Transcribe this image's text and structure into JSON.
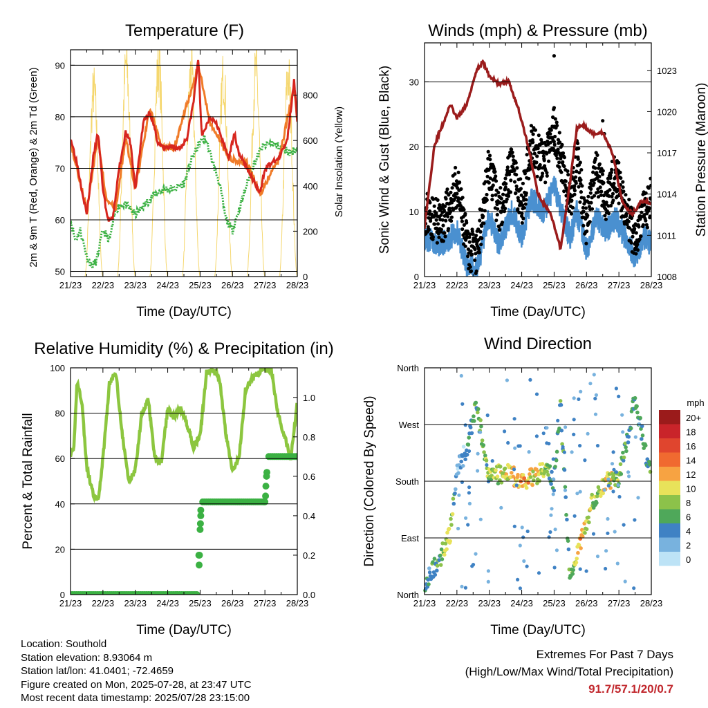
{
  "x_ticks": [
    "21/23",
    "22/23",
    "23/23",
    "24/23",
    "25/23",
    "26/23",
    "27/23",
    "28/23"
  ],
  "footer": {
    "location": "Location: Southold",
    "elevation": "Station elevation: 8.93064 m",
    "latlon": "Station lat/lon: 41.0401; -72.4659",
    "created": "Figure created on Mon, 2025-07-28, at 23:47 UTC",
    "recent": "Most recent data timestamp: 2025/07/28 23:15:00"
  },
  "extremes": {
    "line1": "Extremes For Past 7 Days",
    "line2": "(High/Low/Max Wind/Total Precipitation)",
    "value": "91.7/57.1/20/0.7"
  },
  "colors": {
    "temp2m": "#d7261e",
    "temp9m": "#f07b28",
    "dewpoint": "#3bb143",
    "solar": "#f5d76e",
    "wind": "#4a90d0",
    "gust": "#000000",
    "pressure": "#9b1c1c",
    "rh": "#8cc63f",
    "precip": "#3bb143"
  },
  "chart_data": [
    {
      "type": "line",
      "title": "Temperature (F)",
      "xlabel": "Time (Day/UTC)",
      "ylabel": "2m & 9m T (Red, Orange) & 2m Td (Green)",
      "ylabel_right": "Solar Insolation (Yellow)",
      "ylim": [
        49,
        93
      ],
      "yticks": [
        "50",
        "60",
        "70",
        "80",
        "90"
      ],
      "ylim_right": [
        0,
        1000
      ],
      "yticks_right": [
        "0",
        "200",
        "400",
        "600",
        "800"
      ],
      "series": [
        {
          "key": "t2m",
          "day": [
            0,
            0.2,
            0.35,
            0.5,
            0.7,
            0.85,
            1.0,
            1.15,
            1.3,
            1.5,
            1.7,
            1.85,
            2.0,
            2.25,
            2.45,
            2.7,
            2.85,
            3.0,
            3.2,
            3.4,
            3.6,
            3.8,
            3.9,
            3.95,
            4.05,
            4.3,
            4.5,
            4.7,
            4.9,
            5.05,
            5.2,
            5.45,
            5.7,
            5.85,
            6.0,
            6.2,
            6.45,
            6.7,
            6.9,
            7.0
          ],
          "values": [
            76,
            71,
            66,
            61,
            72,
            77,
            66,
            60,
            60,
            70,
            77,
            75,
            66,
            79,
            81,
            75,
            74,
            74,
            74,
            74,
            76,
            83,
            89,
            91,
            76,
            80,
            79,
            75,
            72,
            77,
            73,
            70,
            67,
            65,
            70,
            71,
            72,
            76,
            87,
            79
          ]
        },
        {
          "key": "t9m",
          "day": [
            0,
            0.5,
            0.85,
            1.1,
            1.4,
            1.7,
            2.0,
            2.45,
            2.8,
            3.2,
            3.95,
            4.3,
            4.9,
            5.45,
            5.85,
            6.45,
            6.9,
            7.0
          ],
          "values": [
            75,
            62,
            76,
            64,
            62,
            76,
            66,
            82,
            74,
            74,
            90,
            79,
            72,
            71,
            65,
            72,
            86,
            79
          ]
        },
        {
          "key": "td",
          "day": [
            0,
            0.15,
            0.3,
            0.5,
            0.65,
            0.8,
            1.0,
            1.2,
            1.4,
            1.55,
            1.7,
            2.0,
            2.3,
            2.6,
            2.9,
            3.2,
            3.5,
            3.75,
            4.0,
            4.15,
            4.3,
            4.6,
            4.8,
            5.0,
            5.3,
            5.6,
            5.9,
            6.2,
            6.5,
            6.8,
            7.0
          ],
          "values": [
            60,
            56,
            58,
            53,
            51,
            52,
            58,
            56,
            62,
            63,
            63,
            61,
            63,
            65,
            66,
            66,
            67,
            72,
            75,
            76,
            73,
            67,
            60,
            58,
            64,
            70,
            74,
            75,
            74,
            73,
            74
          ]
        },
        {
          "key": "solar",
          "peak_day": [
            0.72,
            1.72,
            2.72,
            3.72,
            4.72,
            5.72,
            6.72
          ],
          "peak_value": [
            820,
            930,
            930,
            900,
            880,
            900,
            880
          ]
        }
      ]
    },
    {
      "type": "line",
      "title": "Winds (mph) & Pressure (mb)",
      "xlabel": "Time (Day/UTC)",
      "ylabel": "Sonic Wind & Gust (Blue, Black)",
      "ylabel_right": "Station Pressure (Maroon)",
      "ylim": [
        0,
        36
      ],
      "yticks": [
        "0",
        "10",
        "20",
        "30"
      ],
      "ylim_right": [
        1008,
        1025
      ],
      "yticks_right": [
        "1008",
        "1011",
        "1014",
        "1017",
        "1020",
        "1023"
      ],
      "series": [
        {
          "key": "pressure",
          "day": [
            0,
            0.3,
            0.8,
            1.0,
            1.3,
            1.6,
            1.8,
            2.0,
            2.3,
            2.6,
            2.9,
            3.2,
            3.5,
            3.9,
            4.2,
            4.5,
            4.7,
            4.9,
            5.2,
            5.5,
            5.8,
            6.1,
            6.4,
            6.7,
            7.0
          ],
          "values": [
            1011.6,
            1017.5,
            1020.5,
            1019.5,
            1020.5,
            1023.0,
            1023.6,
            1022.6,
            1022.0,
            1022.2,
            1020.2,
            1017.5,
            1014.0,
            1012.5,
            1010.0,
            1015.0,
            1018.8,
            1019.0,
            1018.4,
            1018.5,
            1017.0,
            1013.5,
            1012.5,
            1013.5,
            1013.3
          ]
        },
        {
          "key": "wind",
          "day": [
            0,
            0.5,
            0.8,
            1.0,
            1.3,
            1.6,
            2.0,
            2.3,
            2.7,
            3.0,
            3.3,
            3.7,
            4.0,
            4.3,
            4.5,
            4.7,
            5.0,
            5.3,
            5.6,
            5.9,
            6.2,
            6.5,
            6.8,
            7.0
          ],
          "values": [
            6,
            5,
            6,
            7,
            2,
            1,
            9,
            5,
            10,
            6,
            12,
            10,
            14,
            9,
            6,
            10,
            4,
            9,
            7,
            9,
            6,
            3,
            6,
            5
          ]
        },
        {
          "key": "gust",
          "day": [
            0,
            0.5,
            0.8,
            1.0,
            1.3,
            1.6,
            2.0,
            2.3,
            2.7,
            3.0,
            3.3,
            3.7,
            4.0,
            4.3,
            4.5,
            4.7,
            5.0,
            5.3,
            5.6,
            5.9,
            6.2,
            6.5,
            6.8,
            7.0
          ],
          "values": [
            10,
            8,
            11,
            14,
            5,
            3,
            17,
            10,
            17,
            11,
            20,
            17,
            23,
            16,
            11,
            18,
            8,
            16,
            12,
            16,
            10,
            6,
            10,
            12
          ]
        }
      ]
    },
    {
      "type": "line",
      "title": "Relative Humidity (%) & Precipitation (in)",
      "xlabel": "Time (Day/UTC)",
      "ylabel": "Percent & Total Rainfall",
      "ylim": [
        0,
        100
      ],
      "yticks": [
        "0",
        "20",
        "40",
        "60",
        "80",
        "100"
      ],
      "ylim_right": [
        0,
        1.15
      ],
      "yticks_right": [
        "0.0",
        "0.2",
        "0.4",
        "0.6",
        "0.8",
        "1.0"
      ],
      "series": [
        {
          "key": "rh",
          "day": [
            0,
            0.1,
            0.2,
            0.35,
            0.5,
            0.7,
            0.85,
            1.0,
            1.2,
            1.4,
            1.6,
            1.8,
            2.0,
            2.2,
            2.4,
            2.6,
            2.8,
            3.0,
            3.2,
            3.4,
            3.6,
            3.8,
            4.0,
            4.2,
            4.4,
            4.6,
            4.8,
            5.0,
            5.2,
            5.4,
            5.6,
            5.8,
            6.0,
            6.2,
            6.4,
            6.6,
            6.8,
            7.0
          ],
          "values": [
            62,
            63,
            94,
            85,
            56,
            44,
            41,
            60,
            93,
            98,
            70,
            50,
            55,
            80,
            86,
            60,
            58,
            82,
            78,
            82,
            75,
            65,
            70,
            98,
            99,
            95,
            70,
            55,
            60,
            90,
            95,
            98,
            100,
            99,
            80,
            70,
            60,
            85
          ]
        },
        {
          "key": "precip",
          "day": [
            0,
            3.9,
            3.95,
            4.0,
            4.05,
            6.0,
            6.05,
            6.1,
            7.0
          ],
          "values": [
            0.0,
            0.0,
            0.15,
            0.4,
            0.47,
            0.47,
            0.6,
            0.7,
            0.7
          ]
        }
      ]
    },
    {
      "type": "scatter",
      "title": "Wind Direction",
      "xlabel": "Time (Day/UTC)",
      "ylabel": "Direction (Colored By Speed)",
      "ylim": [
        0,
        360
      ],
      "yticks": [
        "North",
        "East",
        "South",
        "West",
        "North"
      ],
      "colorbar_label": "mph",
      "colorbar": [
        "20+",
        "18",
        "16",
        "14",
        "12",
        "10",
        "8",
        "6",
        "4",
        "2",
        "0"
      ],
      "colorbar_colors": [
        "#9b1b1b",
        "#c9242a",
        "#e0452e",
        "#f06a30",
        "#f7a342",
        "#e8e25a",
        "#8cc24a",
        "#4fa85a",
        "#3f82c4",
        "#78b2de",
        "#bde3f6"
      ],
      "series": [
        {
          "key": "direction",
          "day": [
            0,
            0.5,
            0.8,
            1.0,
            1.3,
            1.6,
            2.0,
            2.5,
            3.0,
            3.5,
            3.8,
            4.0,
            4.2,
            4.5,
            4.8,
            5.2,
            5.6,
            6.0,
            6.5,
            7.0
          ],
          "values": [
            20,
            60,
            100,
            200,
            230,
            300,
            185,
            195,
            180,
            190,
            200,
            180,
            300,
            20,
            80,
            150,
            180,
            185,
            310,
            180
          ],
          "speed": [
            4,
            6,
            10,
            2,
            3,
            6,
            8,
            10,
            12,
            10,
            7,
            4,
            6,
            5,
            12,
            8,
            10,
            8,
            4,
            6
          ]
        }
      ]
    }
  ]
}
